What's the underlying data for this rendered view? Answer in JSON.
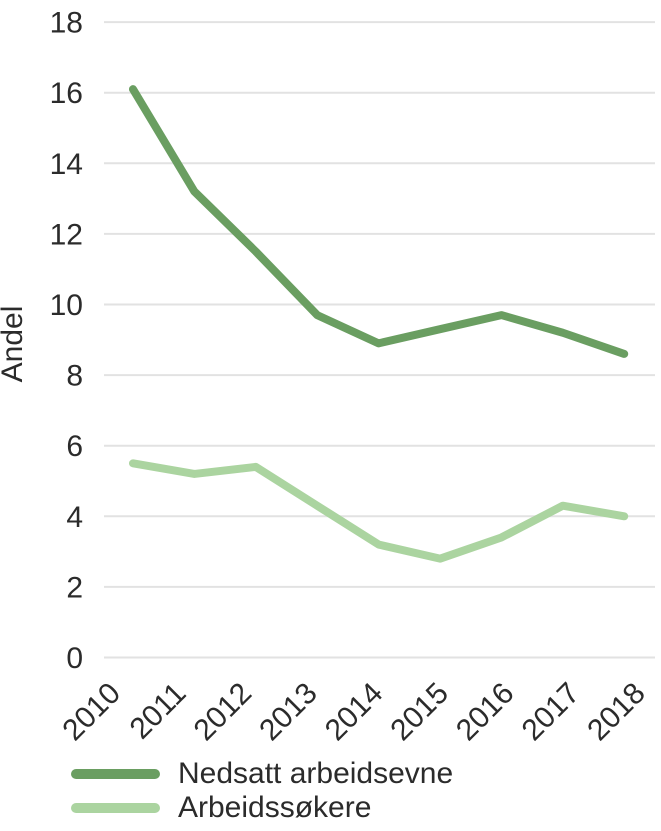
{
  "figure": {
    "background": "#ffffff",
    "text_color": "#2b2b2b",
    "grid_color": "#e2e2e2"
  },
  "chart_data": {
    "type": "line",
    "title": "",
    "xlabel": "",
    "ylabel": "Andel",
    "categories": [
      "2010",
      "2011",
      "2012",
      "2013",
      "2014",
      "2015",
      "2016",
      "2017",
      "2018"
    ],
    "y_ticks": [
      0,
      2,
      4,
      6,
      8,
      10,
      12,
      14,
      16,
      18
    ],
    "ylim": [
      0,
      18
    ],
    "grid": "horizontal",
    "legend_position": "bottom-left",
    "series": [
      {
        "name": "Nedsatt arbeidsevne",
        "color": "#6a9e61",
        "values": [
          16.1,
          13.2,
          11.5,
          9.7,
          8.9,
          9.3,
          9.7,
          9.2,
          8.6
        ]
      },
      {
        "name": "Arbeidssøkere",
        "color": "#abd4a0",
        "values": [
          5.5,
          5.2,
          5.4,
          4.3,
          3.2,
          2.8,
          3.4,
          4.3,
          4.0
        ]
      }
    ]
  }
}
